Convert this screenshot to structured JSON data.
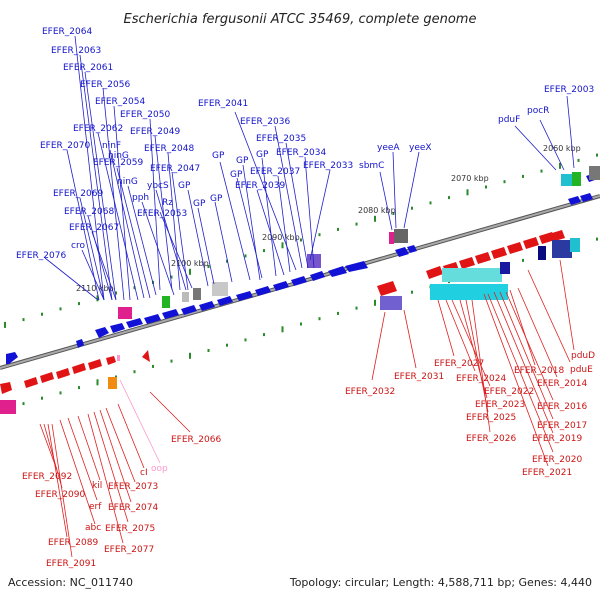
{
  "title": "Escherichia fergusonii ATCC 35469, complete genome",
  "footer": {
    "accession": "Accession: NC_011740",
    "summary": "Topology: circular; Length: 4,588,711 bp; Genes: 4,440"
  },
  "scale_labels": [
    "2060 kbp",
    "2070 kbp",
    "2080 kbp",
    "2090 kbp",
    "2100 kbp",
    "2110 kbp"
  ],
  "colors": {
    "forward": "#1010d0",
    "reverse": "#e01010",
    "backbone": "#8a8a8a",
    "tick": "#2a8a2a",
    "pink": "#ff99cc"
  },
  "labels_top": [
    "EFER_2064",
    "EFER_2063",
    "EFER_2061",
    "EFER_2056",
    "EFER_2054",
    "EFER_2062",
    "EFER_2050",
    "ninF",
    "EFER_2049",
    "EFER_2070",
    "EFER_2048",
    "ninG",
    "EFER_2059",
    "EFER_2047",
    "ninG",
    "ybcS",
    "pph",
    "GP",
    "Rz",
    "EFER_2053",
    "EFER_2069",
    "EFER_2068",
    "EFER_2067",
    "cro",
    "EFER_2076",
    "GP",
    "GP",
    "GP",
    "GP",
    "EFER_2041",
    "EFER_2036",
    "EFER_2035",
    "EFER_2034",
    "EFER_2037",
    "EFER_2039",
    "EFER_2033",
    "sbmC",
    "yeeA",
    "yeeX",
    "EFER_2003",
    "pocR",
    "pduF",
    "GP",
    "GP"
  ],
  "labels_bottom": [
    "EFER_2032",
    "EFER_2031",
    "EFER_2027",
    "EFER_2024",
    "EFER_2022",
    "EFER_2023",
    "EFER_2025",
    "EFER_2026",
    "EFER_2018",
    "EFER_2014",
    "pduE",
    "pduD",
    "EFER_2016",
    "EFER_2017",
    "EFER_2019",
    "EFER_2020",
    "EFER_2021",
    "EFER_2066",
    "oop",
    "cI",
    "EFER_2073",
    "EFER_2074",
    "EFER_2075",
    "EFER_2077",
    "kil",
    "erf",
    "abc",
    "EFER_2092",
    "EFER_2090",
    "EFER_2089",
    "EFER_2091"
  ]
}
